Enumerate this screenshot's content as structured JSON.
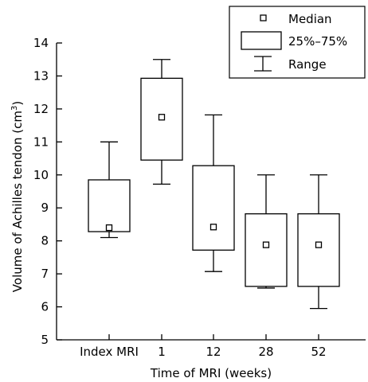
{
  "chart_data": {
    "type": "box",
    "title": "",
    "xlabel": "Time of MRI (weeks)",
    "ylabel_prefix": "Volume of Achilles tendon (cm",
    "ylabel_sup": "3",
    "ylabel_suffix": ")",
    "ylim": [
      5,
      14
    ],
    "yticks": [
      5,
      6,
      7,
      8,
      9,
      10,
      11,
      12,
      13,
      14
    ],
    "grid": false,
    "legend_position": "top-right",
    "legend": {
      "median": "Median",
      "iqr": "25%–75%",
      "range": "Range"
    },
    "categories": [
      "Index MRI",
      "1",
      "12",
      "28",
      "52"
    ],
    "boxes": [
      {
        "category": "Index MRI",
        "min": 8.1,
        "q1": 8.28,
        "median": 8.4,
        "q3": 9.85,
        "max": 11.0
      },
      {
        "category": "1",
        "min": 9.72,
        "q1": 10.45,
        "median": 11.75,
        "q3": 12.93,
        "max": 13.5
      },
      {
        "category": "12",
        "min": 7.07,
        "q1": 7.72,
        "median": 8.42,
        "q3": 10.28,
        "max": 11.82
      },
      {
        "category": "28",
        "min": 6.57,
        "q1": 6.62,
        "median": 7.88,
        "q3": 8.82,
        "max": 10.0
      },
      {
        "category": "52",
        "min": 5.95,
        "q1": 6.62,
        "median": 7.88,
        "q3": 8.82,
        "max": 10.0
      }
    ]
  }
}
